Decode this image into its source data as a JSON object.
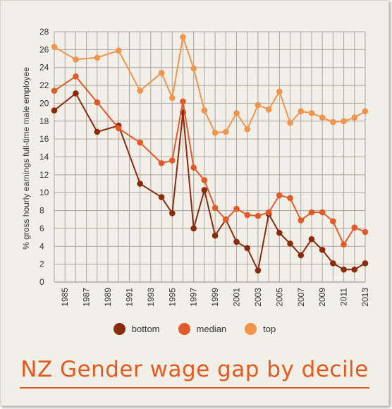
{
  "title": "NZ Gender wage gap by decile",
  "chart_data": {
    "type": "line",
    "title": "NZ Gender wage gap by decile",
    "ylabel": "% gross hourly earnings full-time male employee",
    "xlabel": "",
    "ylim": [
      0,
      28
    ],
    "yticks": [
      0,
      2,
      4,
      6,
      8,
      10,
      12,
      14,
      16,
      18,
      20,
      22,
      24,
      26,
      28
    ],
    "xlim": [
      1984,
      2013
    ],
    "xticks": [
      1985,
      1987,
      1989,
      1991,
      1993,
      1995,
      1997,
      1999,
      2001,
      2003,
      2005,
      2007,
      2009,
      2011,
      2013
    ],
    "grid": true,
    "legend_position": "bottom",
    "series": [
      {
        "name": "bottom",
        "color": "#8b2a0c",
        "x": [
          1984,
          1986,
          1988,
          1990,
          1992,
          1994,
          1995,
          1996,
          1997,
          1998,
          1999,
          2000,
          2001,
          2002,
          2003,
          2004,
          2005,
          2006,
          2007,
          2008,
          2009,
          2010,
          2011,
          2012,
          2013
        ],
        "y": [
          19.2,
          21.1,
          16.8,
          17.5,
          11.0,
          9.5,
          7.7,
          19.0,
          6.0,
          10.3,
          5.2,
          7.0,
          4.5,
          3.8,
          1.3,
          7.6,
          5.5,
          4.3,
          3.0,
          4.8,
          3.6,
          2.1,
          1.4,
          1.4,
          2.1
        ]
      },
      {
        "name": "median",
        "color": "#e35a2a",
        "x": [
          1984,
          1986,
          1988,
          1990,
          1992,
          1994,
          1995,
          1996,
          1997,
          1998,
          1999,
          2000,
          2001,
          2002,
          2003,
          2004,
          2005,
          2006,
          2007,
          2008,
          2009,
          2010,
          2011,
          2012,
          2013
        ],
        "y": [
          21.4,
          23.0,
          20.1,
          17.2,
          15.6,
          13.3,
          13.6,
          20.2,
          12.8,
          11.4,
          8.3,
          7.0,
          8.2,
          7.5,
          7.4,
          7.8,
          9.7,
          9.4,
          6.9,
          7.8,
          7.8,
          6.8,
          4.2,
          6.1,
          5.6
        ]
      },
      {
        "name": "top",
        "color": "#f2944a",
        "x": [
          1984,
          1986,
          1988,
          1990,
          1992,
          1994,
          1995,
          1996,
          1997,
          1998,
          1999,
          2000,
          2001,
          2002,
          2003,
          2004,
          2005,
          2006,
          2007,
          2008,
          2009,
          2010,
          2011,
          2012,
          2013
        ],
        "y": [
          26.3,
          24.9,
          25.1,
          25.9,
          21.4,
          23.4,
          20.6,
          27.4,
          23.9,
          19.2,
          16.7,
          16.8,
          18.9,
          17.1,
          19.8,
          19.3,
          21.3,
          17.8,
          19.1,
          18.9,
          18.4,
          17.9,
          18.0,
          18.4,
          19.1
        ]
      }
    ]
  }
}
